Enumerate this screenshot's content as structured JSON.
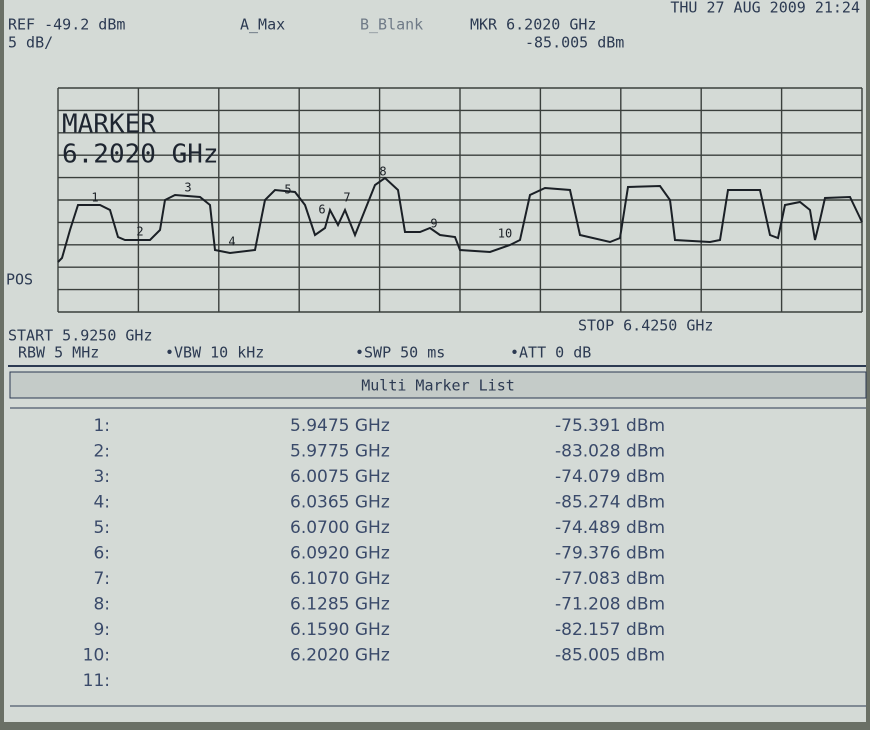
{
  "header": {
    "datetime": "THU 27 AUG 2009 21:24",
    "ref": "REF -49.2 dBm",
    "scale": "5 dB/",
    "trace_a": "A_Max",
    "trace_b": "B_Blank",
    "marker_freq": "MKR 6.2020 GHz",
    "marker_level": "-85.005 dBm"
  },
  "graph": {
    "annotation_title": "MARKER",
    "annotation_freq": "6.2020 GHz",
    "pos_label": "POS",
    "marker_labels": [
      "1",
      "2",
      "3",
      "4",
      "5",
      "6",
      "7",
      "8",
      "9",
      "10"
    ]
  },
  "footer": {
    "start": "START 5.9250 GHz",
    "stop": "STOP 6.4250 GHz",
    "rbw": "RBW 5 MHz",
    "vbw": "•VBW 10 kHz",
    "swp": "•SWP 50 ms",
    "att": "•ATT 0 dB"
  },
  "table": {
    "title": "Multi Marker List",
    "rows": [
      [
        "1:",
        "5.9475 GHz",
        "-75.391 dBm"
      ],
      [
        "2:",
        "5.9775 GHz",
        "-83.028 dBm"
      ],
      [
        "3:",
        "6.0075 GHz",
        "-74.079 dBm"
      ],
      [
        "4:",
        "6.0365 GHz",
        "-85.274 dBm"
      ],
      [
        "5:",
        "6.0700 GHz",
        "-74.489 dBm"
      ],
      [
        "6:",
        "6.0920 GHz",
        "-79.376 dBm"
      ],
      [
        "7:",
        "6.1070 GHz",
        "-77.083 dBm"
      ],
      [
        "8:",
        "6.1285 GHz",
        "-71.208 dBm"
      ],
      [
        "9:",
        "6.1590 GHz",
        "-82.157 dBm"
      ],
      [
        "10:",
        "6.2020 GHz",
        "-85.005 dBm"
      ],
      [
        "11:"
      ]
    ]
  }
}
